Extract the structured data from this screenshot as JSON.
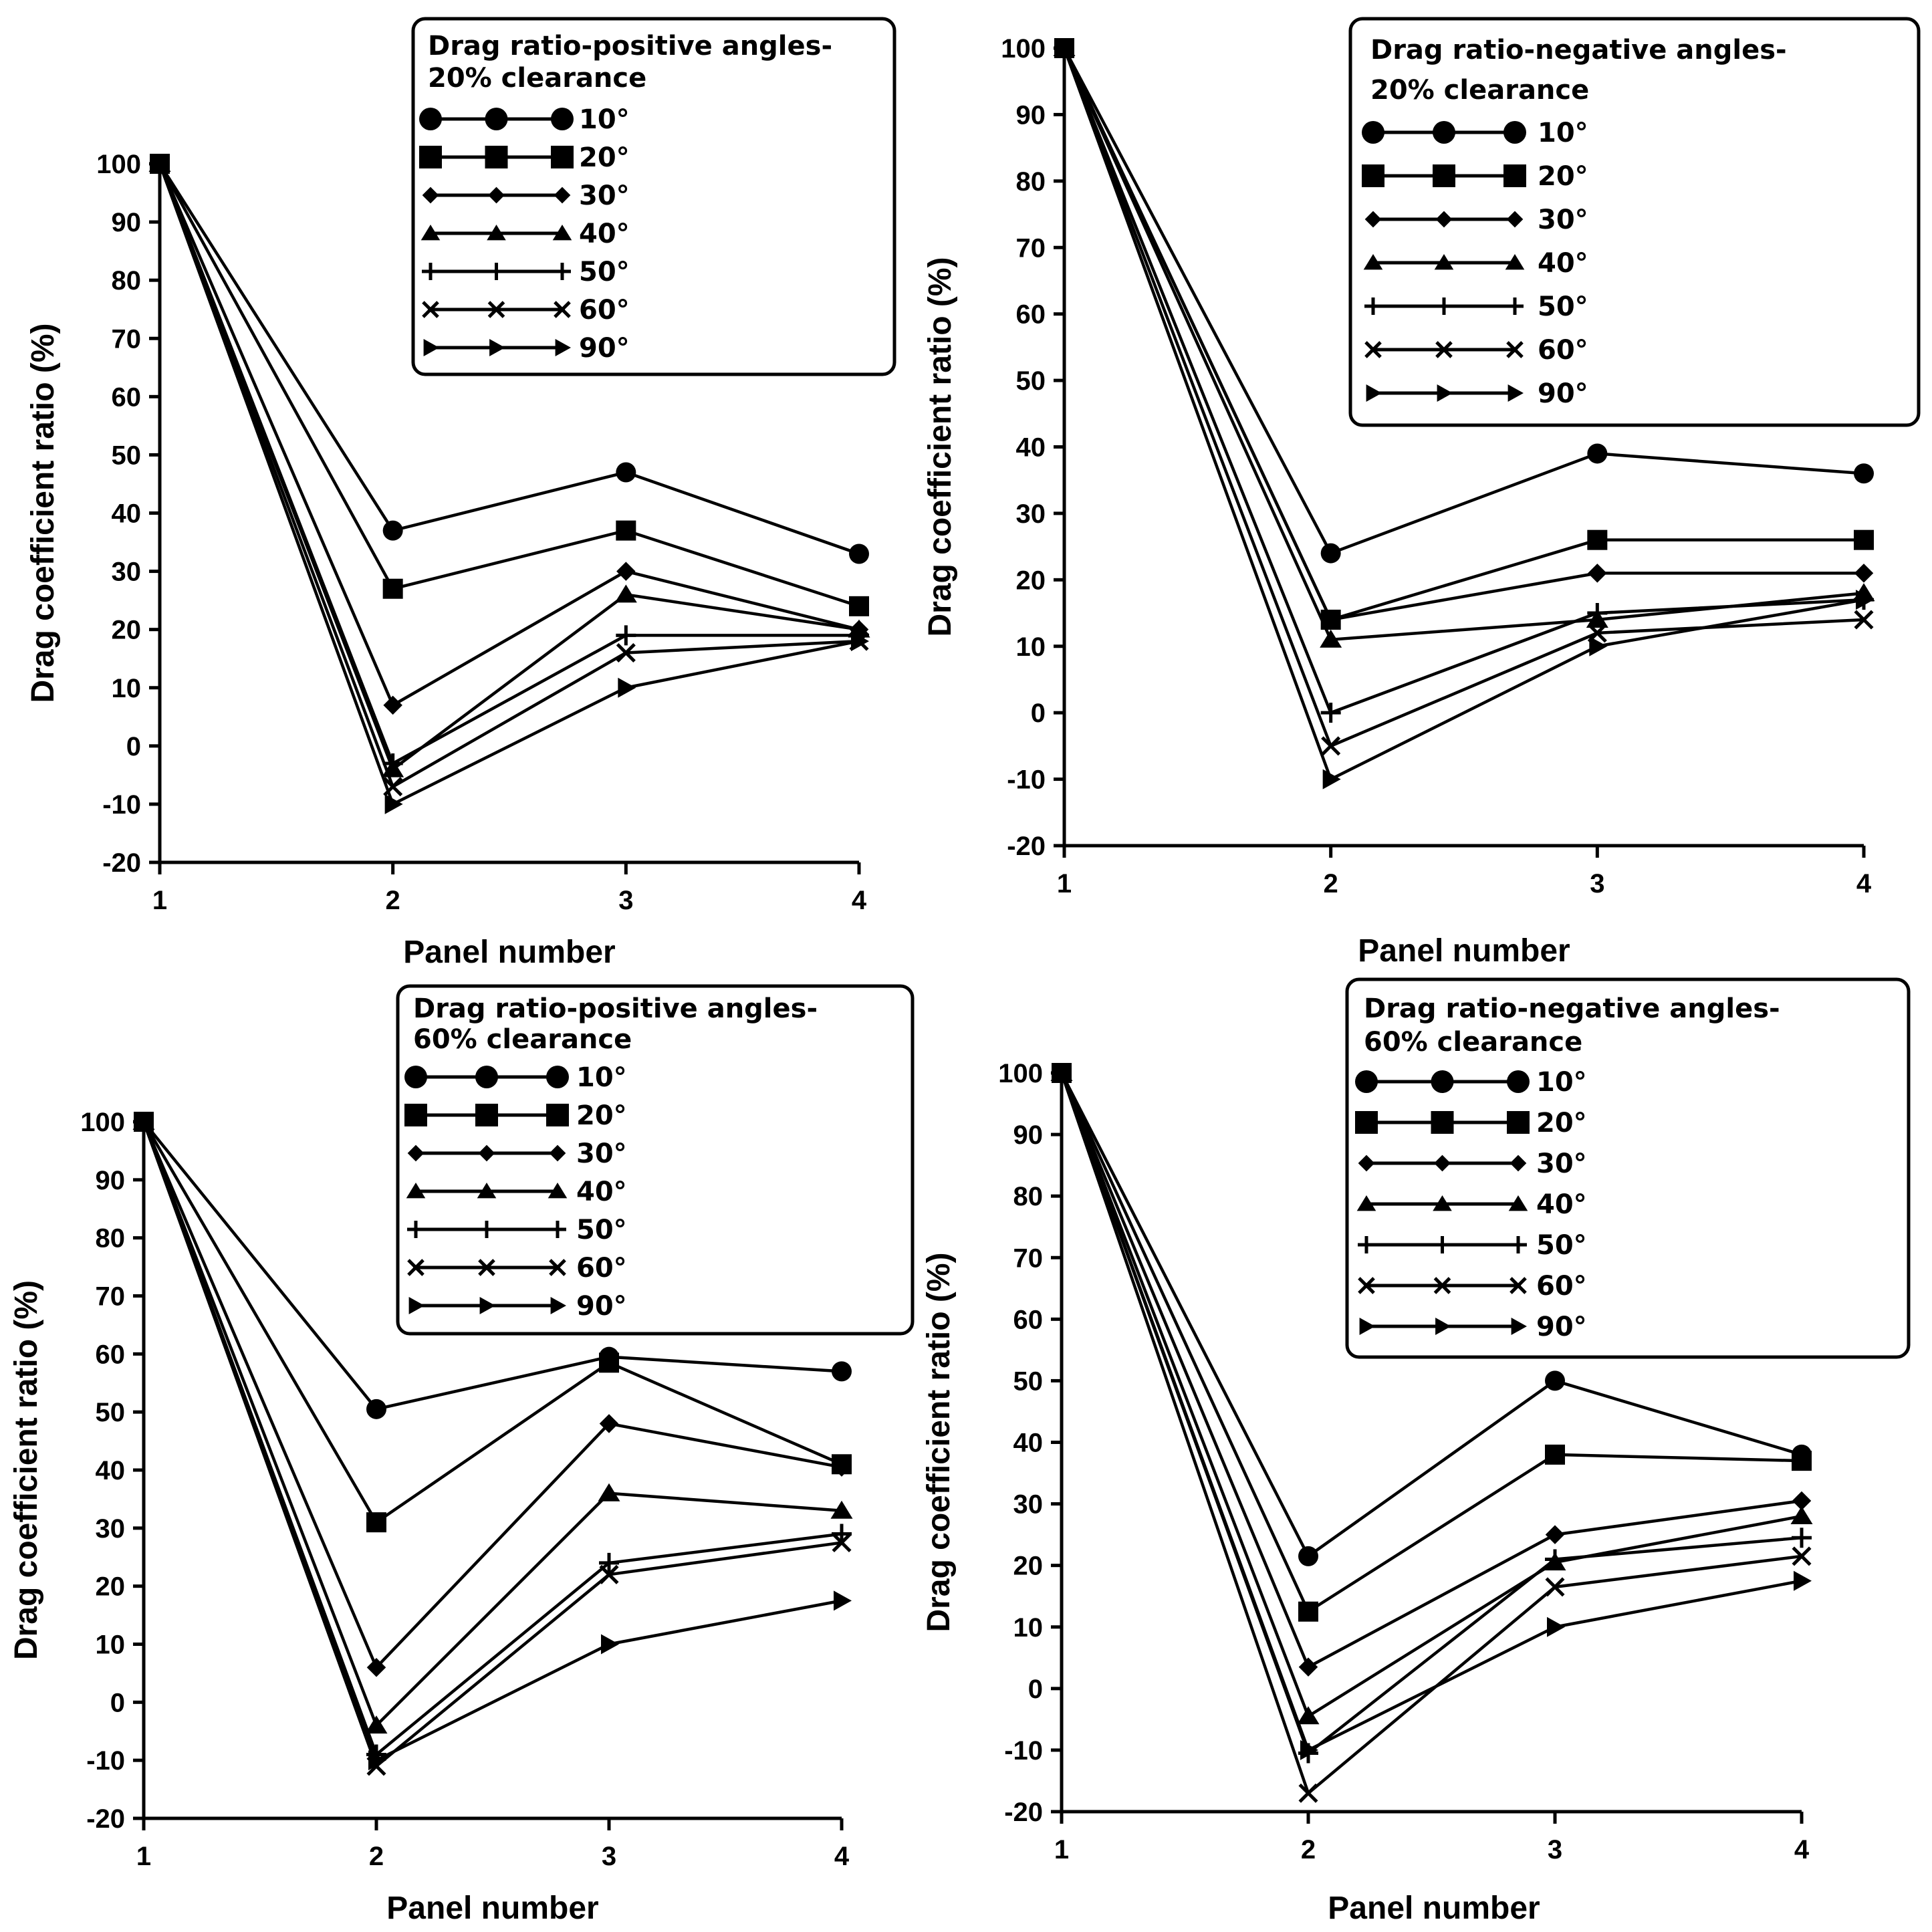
{
  "figure": {
    "chart_data": [
      {
        "type": "line",
        "title": "Drag ratio-positive angles-20% clearance",
        "xlabel": "Panel number",
        "ylabel": "Drag coefficient ratio (%)",
        "x": [
          1,
          2,
          3,
          4
        ],
        "xticks": [
          "1",
          "2",
          "3",
          "4"
        ],
        "ylim": [
          -20,
          100
        ],
        "yticks": [
          "100",
          "90",
          "80",
          "70",
          "60",
          "50",
          "40",
          "30",
          "20",
          "10",
          "0",
          "-10",
          "-20"
        ],
        "legend_position": "top-right",
        "series": [
          {
            "name": "10°",
            "marker": "circle",
            "values": [
              100,
              37,
              47,
              33
            ]
          },
          {
            "name": "20°",
            "marker": "square",
            "values": [
              100,
              27,
              37,
              24
            ]
          },
          {
            "name": "30°",
            "marker": "diamond",
            "values": [
              100,
              7,
              30,
              20
            ]
          },
          {
            "name": "40°",
            "marker": "triangle",
            "values": [
              100,
              -4,
              26,
              20
            ]
          },
          {
            "name": "50°",
            "marker": "plus",
            "values": [
              100,
              -3,
              19,
              19
            ]
          },
          {
            "name": "60°",
            "marker": "x",
            "values": [
              100,
              -7,
              16,
              18
            ]
          },
          {
            "name": "90°",
            "marker": "triangle-right",
            "values": [
              100,
              -10,
              10,
              18
            ]
          }
        ]
      },
      {
        "type": "line",
        "title": "Drag ratio-negative angles-20% clearance",
        "xlabel": "Panel number",
        "ylabel": "Drag coefficient ratio (%)",
        "x": [
          1,
          2,
          3,
          4
        ],
        "xticks": [
          "1",
          "2",
          "3",
          "4"
        ],
        "ylim": [
          -20,
          100
        ],
        "yticks": [
          "100",
          "90",
          "80",
          "70",
          "60",
          "50",
          "40",
          "30",
          "20",
          "10",
          "0",
          "-10",
          "-20"
        ],
        "legend_position": "top-right",
        "series": [
          {
            "name": "10°",
            "marker": "circle",
            "values": [
              100,
              24,
              39,
              36
            ]
          },
          {
            "name": "20°",
            "marker": "square",
            "values": [
              100,
              14,
              26,
              26
            ]
          },
          {
            "name": "30°",
            "marker": "diamond",
            "values": [
              100,
              14,
              21,
              21
            ]
          },
          {
            "name": "40°",
            "marker": "triangle",
            "values": [
              100,
              11,
              14,
              18
            ]
          },
          {
            "name": "50°",
            "marker": "plus",
            "values": [
              100,
              0,
              15,
              17
            ]
          },
          {
            "name": "60°",
            "marker": "x",
            "values": [
              100,
              -5,
              12,
              14
            ]
          },
          {
            "name": "90°",
            "marker": "triangle-right",
            "values": [
              100,
              -10,
              10,
              17
            ]
          }
        ]
      },
      {
        "type": "line",
        "title": "Drag ratio-positive angles-60% clearance",
        "xlabel": "Panel number",
        "ylabel": "Drag coefficient ratio (%)",
        "x": [
          1,
          2,
          3,
          4
        ],
        "xticks": [
          "1",
          "2",
          "3",
          "4"
        ],
        "ylim": [
          -20,
          100
        ],
        "yticks": [
          "100",
          "90",
          "80",
          "70",
          "60",
          "50",
          "40",
          "30",
          "20",
          "10",
          "0",
          "-10",
          "-20"
        ],
        "legend_position": "top-right",
        "series": [
          {
            "name": "10°",
            "marker": "circle",
            "values": [
              100,
              50.5,
              59.5,
              57
            ]
          },
          {
            "name": "20°",
            "marker": "square",
            "values": [
              100,
              31,
              58.5,
              41
            ]
          },
          {
            "name": "30°",
            "marker": "diamond",
            "values": [
              100,
              6,
              48,
              40.5
            ]
          },
          {
            "name": "40°",
            "marker": "triangle",
            "values": [
              100,
              -4,
              36,
              33
            ]
          },
          {
            "name": "50°",
            "marker": "plus",
            "values": [
              100,
              -9,
              24,
              29
            ]
          },
          {
            "name": "60°",
            "marker": "x",
            "values": [
              100,
              -11,
              22,
              27.5
            ]
          },
          {
            "name": "90°",
            "marker": "triangle-right",
            "values": [
              100,
              -10,
              10,
              17.5
            ]
          }
        ]
      },
      {
        "type": "line",
        "title": "Drag ratio-negative angles-60% clearance",
        "xlabel": "Panel number",
        "ylabel": "Drag coefficient ratio (%)",
        "x": [
          1,
          2,
          3,
          4
        ],
        "xticks": [
          "1",
          "2",
          "3",
          "4"
        ],
        "ylim": [
          -20,
          100
        ],
        "yticks": [
          "100",
          "90",
          "80",
          "70",
          "60",
          "50",
          "40",
          "30",
          "20",
          "10",
          "0",
          "-10",
          "-20"
        ],
        "legend_position": "top-right",
        "series": [
          {
            "name": "10°",
            "marker": "circle",
            "values": [
              100,
              21.5,
              50,
              38
            ]
          },
          {
            "name": "20°",
            "marker": "square",
            "values": [
              100,
              12.5,
              38,
              37
            ]
          },
          {
            "name": "30°",
            "marker": "diamond",
            "values": [
              100,
              3.5,
              25,
              30.5
            ]
          },
          {
            "name": "40°",
            "marker": "triangle",
            "values": [
              100,
              -4.5,
              20.5,
              28
            ]
          },
          {
            "name": "50°",
            "marker": "plus",
            "values": [
              100,
              -10.5,
              21,
              24.5
            ]
          },
          {
            "name": "60°",
            "marker": "x",
            "values": [
              100,
              -17,
              16.5,
              21.5
            ]
          },
          {
            "name": "90°",
            "marker": "triangle-right",
            "values": [
              100,
              -10,
              10,
              17.5
            ]
          }
        ]
      }
    ]
  }
}
